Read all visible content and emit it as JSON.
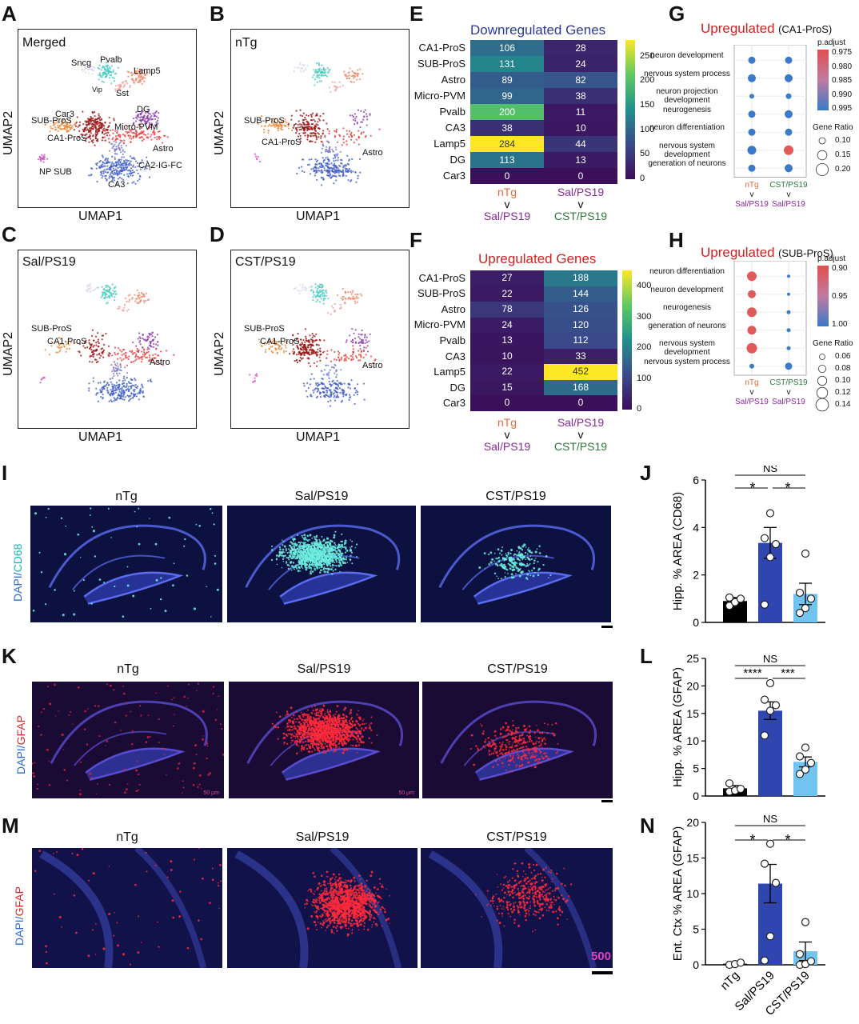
{
  "panels": {
    "A": "A",
    "B": "B",
    "C": "C",
    "D": "D",
    "E": "E",
    "F": "F",
    "G": "G",
    "H": "H",
    "I": "I",
    "J": "J",
    "K": "K",
    "L": "L",
    "M": "M",
    "N": "N"
  },
  "umap": {
    "xlabel": "UMAP1",
    "ylabel": "UMAP2",
    "A": {
      "title": "Merged",
      "labels": [
        "Sncg",
        "Pvalb",
        "Lamp5",
        "Vip",
        "Sst",
        "Car3",
        "DG",
        "SUB-ProS",
        "Micro-PVM",
        "CA1-ProS",
        "Astro",
        "NP SUB",
        "CA2-IG-FC",
        "CA3"
      ]
    },
    "B": {
      "title": "nTg",
      "labels": [
        "SUB-ProS",
        "CA1-ProS",
        "Astro"
      ]
    },
    "C": {
      "title": "Sal/PS19",
      "labels": [
        "SUB-ProS",
        "CA1-ProS",
        "Astro"
      ]
    },
    "D": {
      "title": "CST/PS19",
      "labels": [
        "SUB-ProS",
        "CA1-ProS",
        "Astro"
      ]
    }
  },
  "heatmaps": {
    "rows": [
      "CA1-ProS",
      "SUB-ProS",
      "Astro",
      "Micro-PVM",
      "Pvalb",
      "CA3",
      "Lamp5",
      "DG",
      "Car3"
    ],
    "comparisons": [
      {
        "top": "nTg",
        "v": "v",
        "bottom": "Sal/PS19",
        "top_color": "#e8683a",
        "bottom_color": "#8a2a9a"
      },
      {
        "top": "Sal/PS19",
        "v": "v",
        "bottom": "CST/PS19",
        "top_color": "#8a2a9a",
        "bottom_color": "#2a7a3a"
      }
    ],
    "E": {
      "title": "Downregulated Genes",
      "title_color": "#2b3a9a",
      "col1": [
        106,
        131,
        89,
        99,
        200,
        38,
        284,
        113,
        0
      ],
      "col2": [
        28,
        24,
        82,
        38,
        11,
        10,
        44,
        13,
        0
      ],
      "max": 284,
      "ticks": [
        "250",
        "200",
        "150",
        "100",
        "50",
        "0"
      ]
    },
    "F": {
      "title": "Upregulated Genes",
      "title_color": "#d32020",
      "col1": [
        27,
        22,
        78,
        24,
        13,
        10,
        22,
        15,
        0
      ],
      "col2": [
        188,
        144,
        126,
        120,
        112,
        33,
        452,
        168,
        0
      ],
      "max": 452,
      "ticks": [
        "400",
        "300",
        "200",
        "100",
        "0"
      ]
    }
  },
  "go": {
    "G": {
      "title": "Upregulated",
      "subtitle": "(CA1-ProS)",
      "terms": [
        "neuron development",
        "nervous system process",
        "neuron projection development",
        "neurogenesis",
        "neuron differentiation",
        "nervous system development",
        "generation of neurons"
      ],
      "padj_label": "p.adjust",
      "padj_ticks": [
        "0.975",
        "0.980",
        "0.985",
        "0.990",
        "0.995"
      ],
      "ratio_label": "Gene Ratio",
      "ratio_ticks": [
        "0.10",
        "0.15",
        "0.20"
      ],
      "xlabels": [
        {
          "top": "nTg",
          "v": "v",
          "bottom": "Sal/PS19"
        },
        {
          "top": "CST/PS19",
          "v": "v",
          "bottom": "Sal/PS19"
        }
      ]
    },
    "H": {
      "title": "Upregulated",
      "subtitle": "(SUB-ProS)",
      "terms": [
        "neuron differentiation",
        "neuron development",
        "neurogenesis",
        "generation of neurons",
        "nervous system development",
        "nervous system process"
      ],
      "padj_label": "p.adjust",
      "padj_ticks": [
        "0.90",
        "0.95",
        "1.00"
      ],
      "ratio_label": "Gene Ratio",
      "ratio_ticks": [
        "0.06",
        "0.08",
        "0.10",
        "0.12",
        "0.14"
      ],
      "xlabels": [
        {
          "top": "nTg",
          "v": "v",
          "bottom": "Sal/PS19"
        },
        {
          "top": "CST/PS19",
          "v": "v",
          "bottom": "Sal/PS19"
        }
      ]
    }
  },
  "micrographs": {
    "groups": [
      "nTg",
      "Sal/PS19",
      "CST/PS19"
    ],
    "I": {
      "ylab_a": "DAPI/",
      "ylab_b": "CD68"
    },
    "K": {
      "ylab_a": "DAPI/",
      "ylab_b": "GFAP",
      "scale_text": "50 µm"
    },
    "M": {
      "ylab_a": "DAPI/",
      "ylab_b": "GFAP",
      "scale_text": "500"
    }
  },
  "chart_data": [
    {
      "type": "bar",
      "panel": "J",
      "categories": [
        "nTg",
        "Sal/PS19",
        "CST/PS19"
      ],
      "values": [
        0.9,
        3.35,
        1.2
      ],
      "errors": [
        0.15,
        0.65,
        0.45
      ],
      "points": [
        [
          0.7,
          0.85,
          1.0,
          1.05
        ],
        [
          0.75,
          2.75,
          3.3,
          3.55,
          4.6
        ],
        [
          0.4,
          0.6,
          1.0,
          1.25,
          2.9
        ]
      ],
      "ylabel": "Hipp. % AREA (CD68)",
      "ylim": [
        0,
        6
      ],
      "yticks": [
        "0",
        "2",
        "4",
        "6"
      ],
      "colors": [
        "#000000",
        "#2f45b0",
        "#72c4f0"
      ],
      "sig": [
        "NS",
        "*",
        "*"
      ]
    },
    {
      "type": "bar",
      "panel": "L",
      "categories": [
        "nTg",
        "Sal/PS19",
        "CST/PS19"
      ],
      "values": [
        1.4,
        15.5,
        6.2
      ],
      "errors": [
        0.5,
        1.6,
        0.9
      ],
      "points": [
        [
          0.8,
          1.0,
          1.3,
          2.3
        ],
        [
          11.0,
          15.5,
          16.5,
          17.5,
          20.5
        ],
        [
          4.0,
          4.8,
          6.0,
          7.2,
          8.8
        ]
      ],
      "ylabel": "Hipp. % AREA (GFAP)",
      "ylim": [
        0,
        25
      ],
      "yticks": [
        "0",
        "5",
        "10",
        "15",
        "20",
        "25"
      ],
      "colors": [
        "#000000",
        "#2f45b0",
        "#72c4f0"
      ],
      "sig": [
        "NS",
        "****",
        "***"
      ]
    },
    {
      "type": "bar",
      "panel": "N",
      "categories": [
        "nTg",
        "Sal/PS19",
        "CST/PS19"
      ],
      "values": [
        0.15,
        11.4,
        1.9
      ],
      "errors": [
        0.1,
        2.7,
        1.3
      ],
      "points": [
        [
          0.0,
          0.1,
          0.3
        ],
        [
          0.6,
          4.0,
          11.5,
          14.2,
          17.0
        ],
        [
          0.0,
          0.1,
          0.5,
          1.5,
          6.0
        ]
      ],
      "ylabel": "Ent. Ctx % AREA (GFAP)",
      "ylim": [
        0,
        20
      ],
      "yticks": [
        "0",
        "5",
        "10",
        "15",
        "20"
      ],
      "colors": [
        "#000000",
        "#2f45b0",
        "#72c4f0"
      ],
      "sig": [
        "NS",
        "*",
        "*"
      ]
    }
  ]
}
